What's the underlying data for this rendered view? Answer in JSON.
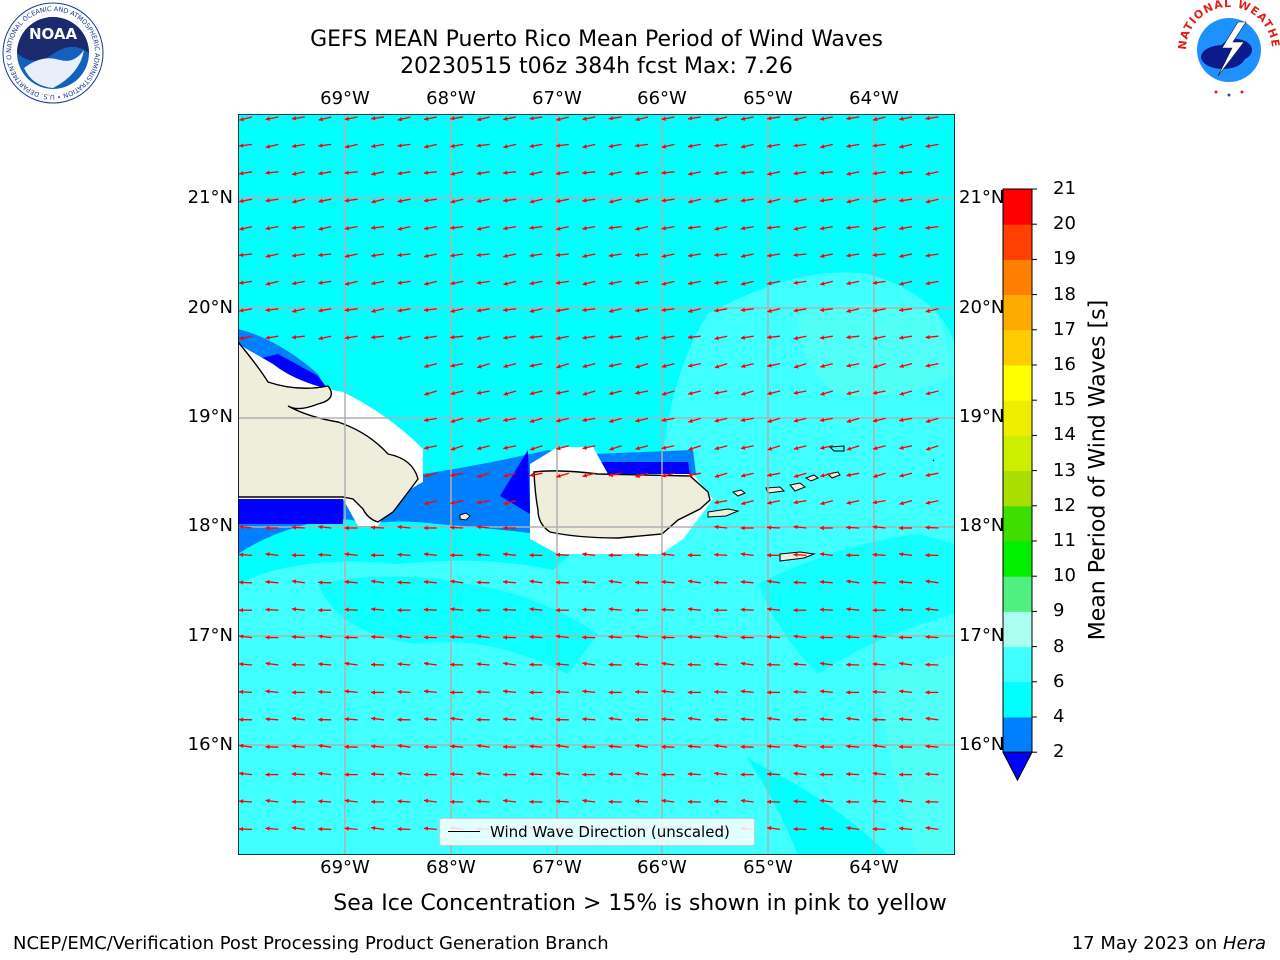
{
  "header": {
    "title_line1": "GEFS MEAN Puerto Rico Mean Period of Wind Waves",
    "title_line2": "20230515 t06z 384h fcst   Max: 7.26"
  },
  "logos": {
    "noaa": {
      "text": "NOAA",
      "ring_text": "NATIONAL OCEANIC AND ATMOSPHERIC ADMINISTRATION • U.S. DEPARTMENT OF COMMERCE"
    },
    "nws": {
      "ring_text": "NATIONAL WEATHER SERVICE"
    }
  },
  "map": {
    "lat_labels": [
      "21°N",
      "20°N",
      "19°N",
      "18°N",
      "17°N",
      "16°N"
    ],
    "lon_labels": [
      "69°W",
      "68°W",
      "67°W",
      "66°W",
      "65°W",
      "64°W"
    ],
    "ocean_colors": {
      "base": "#00ffff",
      "light": "#40ffff",
      "lighter": "#5cfff0",
      "blue": "#0080ff",
      "darkblue": "#0000ff"
    },
    "land_color": "#efeddc",
    "arrow_color": "#ff0000",
    "legend_label": "Wind Wave Direction (unscaled)"
  },
  "colorbar": {
    "title": "Mean Period of Wind Waves [s]",
    "ticks": [
      "2",
      "4",
      "6",
      "8",
      "9",
      "10",
      "11",
      "12",
      "13",
      "14",
      "15",
      "16",
      "17",
      "18",
      "19",
      "20",
      "21"
    ],
    "colors": [
      "#0000ff",
      "#0080ff",
      "#00ffff",
      "#40ffff",
      "#aafff0",
      "#50f080",
      "#00ee00",
      "#40dd00",
      "#aadd00",
      "#ccee00",
      "#eeee00",
      "#ffff00",
      "#ffcc00",
      "#ffaa00",
      "#ff8000",
      "#ff4000",
      "#ff0000"
    ],
    "under_color": "#0000ff"
  },
  "footer": {
    "note": "Sea Ice Concentration > 15% is shown in pink to yellow",
    "credit_left": "NCEP/EMC/Verification Post Processing Product Generation Branch",
    "credit_right_prefix": "17 May 2023 on ",
    "credit_right_italic": "Hera"
  }
}
